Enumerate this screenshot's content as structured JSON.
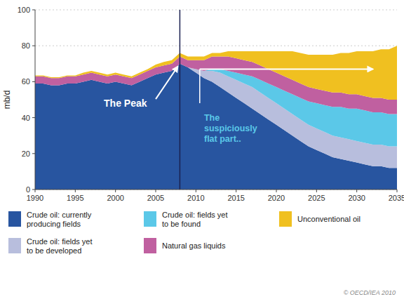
{
  "chart_data": {
    "type": "area",
    "stacked": true,
    "x": [
      1990,
      1991,
      1992,
      1993,
      1994,
      1995,
      1996,
      1997,
      1998,
      1999,
      2000,
      2001,
      2002,
      2003,
      2004,
      2005,
      2006,
      2007,
      2008,
      2009,
      2010,
      2011,
      2012,
      2013,
      2014,
      2015,
      2016,
      2017,
      2018,
      2019,
      2020,
      2021,
      2022,
      2023,
      2024,
      2025,
      2026,
      2027,
      2028,
      2029,
      2030,
      2031,
      2032,
      2033,
      2034,
      2035
    ],
    "series": [
      {
        "name": "Crude oil: currently\nproducing fields",
        "color": "#2855a0",
        "values": [
          59,
          59,
          58,
          58,
          59,
          59,
          60,
          61,
          60,
          59,
          60,
          59,
          58,
          60,
          62,
          64,
          65,
          66,
          70,
          68,
          65,
          62,
          60,
          57,
          54,
          51,
          48,
          45,
          42,
          39,
          36,
          33,
          30,
          27,
          24,
          22,
          20,
          18,
          17,
          16,
          15,
          14,
          13,
          13,
          12,
          12
        ]
      },
      {
        "name": "Crude oil: fields yet\nto be developed",
        "color": "#b8bedd",
        "values": [
          0,
          0,
          0,
          0,
          0,
          0,
          0,
          0,
          0,
          0,
          0,
          0,
          0,
          0,
          0,
          0,
          0,
          0,
          0,
          0,
          2,
          4,
          6,
          8,
          9,
          10,
          11,
          12,
          12,
          12,
          12,
          12,
          12,
          12,
          12,
          12,
          12,
          12,
          12,
          12,
          12,
          12,
          12,
          12,
          12,
          12
        ]
      },
      {
        "name": "Crude oil: fields yet\nto be found",
        "color": "#5bc8e8",
        "values": [
          0,
          0,
          0,
          0,
          0,
          0,
          0,
          0,
          0,
          0,
          0,
          0,
          0,
          0,
          0,
          0,
          0,
          0,
          0,
          0,
          0,
          0,
          1,
          2,
          3,
          4,
          5,
          6,
          7,
          8,
          9,
          10,
          11,
          12,
          13,
          14,
          15,
          16,
          17,
          17,
          18,
          18,
          18,
          18,
          18,
          18
        ]
      },
      {
        "name": "Natural gas liquids",
        "color": "#c060a0",
        "values": [
          4,
          4,
          4,
          4,
          4,
          4,
          4,
          4,
          4,
          4,
          4,
          4,
          4,
          4,
          4,
          4,
          4,
          4,
          4,
          4,
          5,
          6,
          7,
          7,
          8,
          8,
          8,
          8,
          8,
          8,
          8,
          8,
          8,
          8,
          8,
          8,
          8,
          8,
          8,
          8,
          8,
          8,
          8,
          8,
          8,
          8
        ]
      },
      {
        "name": "Unconventional oil",
        "color": "#f0c020",
        "values": [
          0.5,
          0.5,
          0.5,
          0.5,
          0.5,
          0.5,
          1,
          1,
          1,
          1,
          1,
          1,
          1,
          1,
          1,
          1.5,
          2,
          2,
          2,
          2,
          2,
          2,
          2,
          2,
          3,
          4,
          5,
          6,
          8,
          10,
          12,
          14,
          16,
          17,
          18,
          19,
          20,
          21,
          22,
          23,
          24,
          25,
          26,
          27,
          28,
          30
        ]
      }
    ],
    "ylabel": "mb/d",
    "xlim": [
      1990,
      2035
    ],
    "ylim": [
      0,
      100
    ],
    "xticks": [
      1990,
      1995,
      2000,
      2005,
      2010,
      2015,
      2020,
      2025,
      2030,
      2035
    ],
    "yticks": [
      0,
      20,
      40,
      60,
      80,
      100
    ],
    "grid": true,
    "vline": 2008,
    "annotations": [
      "The Peak",
      "The\nsuspiciously\nflat part..",
      "© OECD/IEA 2010"
    ]
  }
}
